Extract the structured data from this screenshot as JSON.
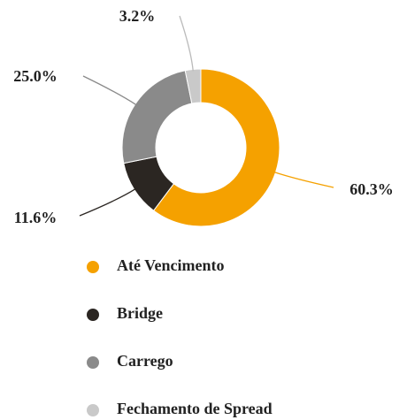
{
  "chart_data": {
    "type": "donut",
    "categories": [
      "Até Vencimento",
      "Bridge",
      "Carrego",
      "Fechamento de Spread"
    ],
    "values": [
      60.3,
      11.6,
      25.0,
      3.2
    ],
    "value_labels": [
      "60.3%",
      "11.6%",
      "25.0%",
      "3.2%"
    ],
    "colors": [
      "#f5a100",
      "#2b2622",
      "#8a8a8a",
      "#c9c9c9"
    ],
    "legend": "bottom"
  }
}
